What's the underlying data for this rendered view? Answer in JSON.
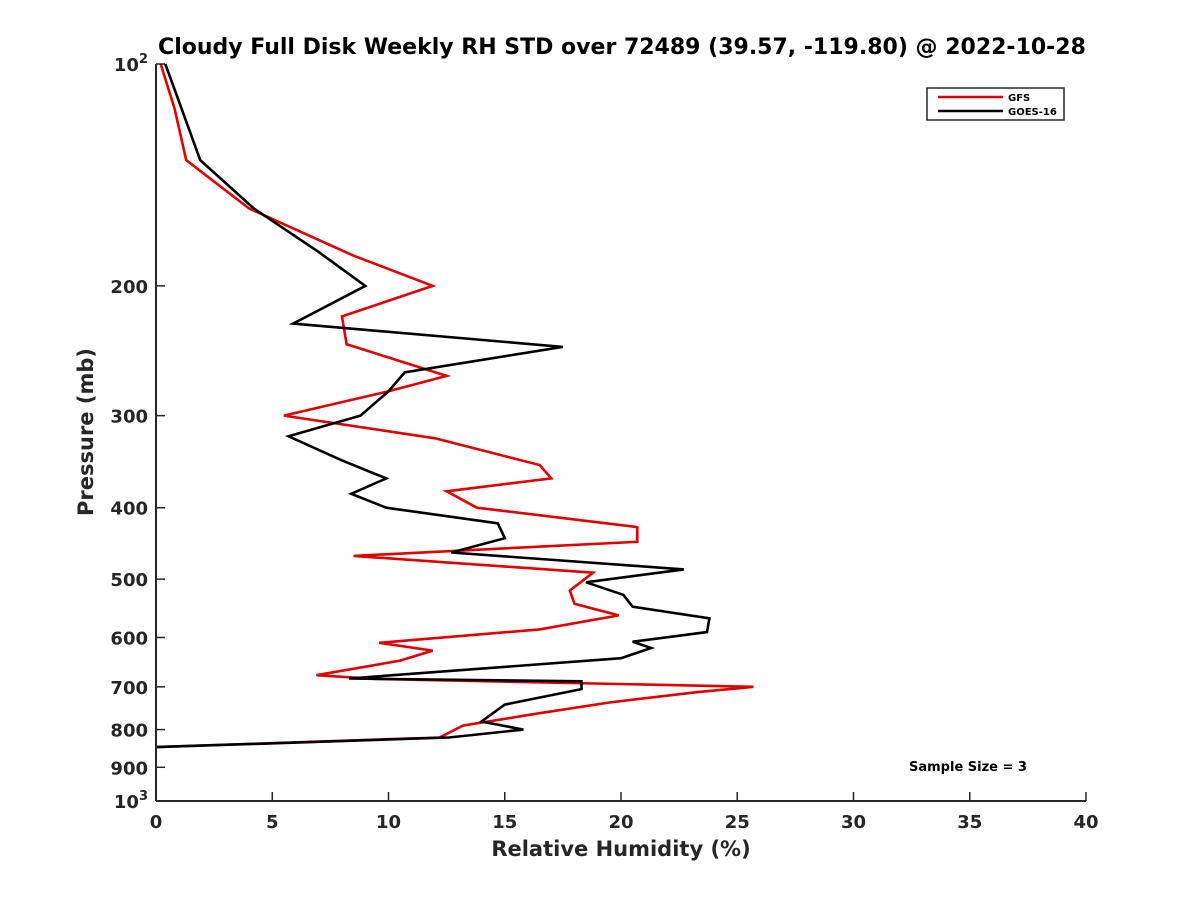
{
  "chart_data": {
    "type": "line",
    "title": "Cloudy Full Disk Weekly RH STD over 72489 (39.57, -119.80) @ 2022-10-28",
    "xlabel": "Relative Humidity (%)",
    "ylabel": "Pressure (mb)",
    "xlim": [
      0,
      40
    ],
    "ylim": [
      100,
      1000
    ],
    "yscale": "log",
    "y_inverted": true,
    "grid": false,
    "x_ticks": [
      0,
      5,
      10,
      15,
      20,
      25,
      30,
      35,
      40
    ],
    "y_ticks": [
      {
        "value": 100,
        "base": "10",
        "exp": "2"
      },
      {
        "value": 200,
        "label": "200"
      },
      {
        "value": 300,
        "label": "300"
      },
      {
        "value": 400,
        "label": "400"
      },
      {
        "value": 500,
        "label": "500"
      },
      {
        "value": 600,
        "label": "600"
      },
      {
        "value": 700,
        "label": "700"
      },
      {
        "value": 800,
        "label": "800"
      },
      {
        "value": 900,
        "label": "900"
      },
      {
        "value": 1000,
        "base": "10",
        "exp": "3"
      }
    ],
    "legend_position": "top-right",
    "series": [
      {
        "name": "GFS",
        "color": "#e00000",
        "points": [
          [
            0.2,
            100
          ],
          [
            0.8,
            115
          ],
          [
            1.3,
            135
          ],
          [
            4.0,
            157
          ],
          [
            8.5,
            182
          ],
          [
            11.9,
            200
          ],
          [
            8.0,
            220
          ],
          [
            8.2,
            240
          ],
          [
            12.5,
            265
          ],
          [
            10.0,
            278
          ],
          [
            5.5,
            300
          ],
          [
            12.0,
            322
          ],
          [
            16.5,
            350
          ],
          [
            17.0,
            365
          ],
          [
            12.5,
            380
          ],
          [
            13.8,
            400
          ],
          [
            20.7,
            425
          ],
          [
            20.7,
            445
          ],
          [
            8.5,
            465
          ],
          [
            18.8,
            490
          ],
          [
            17.8,
            518
          ],
          [
            18.0,
            540
          ],
          [
            19.9,
            560
          ],
          [
            16.5,
            585
          ],
          [
            9.6,
            610
          ],
          [
            11.9,
            625
          ],
          [
            10.5,
            645
          ],
          [
            6.9,
            675
          ],
          [
            9.5,
            683
          ],
          [
            25.7,
            700
          ],
          [
            23.2,
            712
          ],
          [
            19.5,
            735
          ],
          [
            16.5,
            760
          ],
          [
            13.2,
            790
          ],
          [
            12.2,
            820
          ],
          [
            0.0,
            845
          ]
        ]
      },
      {
        "name": "GOES-16",
        "color": "#000000",
        "points": [
          [
            0.4,
            100
          ],
          [
            1.1,
            115
          ],
          [
            1.9,
            135
          ],
          [
            4.2,
            157
          ],
          [
            7.0,
            180
          ],
          [
            9.0,
            200
          ],
          [
            5.9,
            225
          ],
          [
            17.5,
            242
          ],
          [
            10.7,
            262
          ],
          [
            10.0,
            278
          ],
          [
            8.8,
            300
          ],
          [
            5.7,
            320
          ],
          [
            8.0,
            345
          ],
          [
            9.9,
            365
          ],
          [
            8.4,
            383
          ],
          [
            9.9,
            400
          ],
          [
            14.7,
            420
          ],
          [
            15.0,
            440
          ],
          [
            12.7,
            460
          ],
          [
            22.7,
            485
          ],
          [
            18.5,
            505
          ],
          [
            20.1,
            525
          ],
          [
            20.5,
            545
          ],
          [
            23.8,
            565
          ],
          [
            23.7,
            590
          ],
          [
            20.5,
            608
          ],
          [
            21.3,
            620
          ],
          [
            20.0,
            640
          ],
          [
            8.3,
            682
          ],
          [
            18.3,
            688
          ],
          [
            18.3,
            705
          ],
          [
            15.0,
            740
          ],
          [
            14.0,
            780
          ],
          [
            15.8,
            800
          ],
          [
            12.6,
            820
          ],
          [
            0.0,
            845
          ]
        ]
      }
    ],
    "annotation": "Sample Size = 3"
  }
}
